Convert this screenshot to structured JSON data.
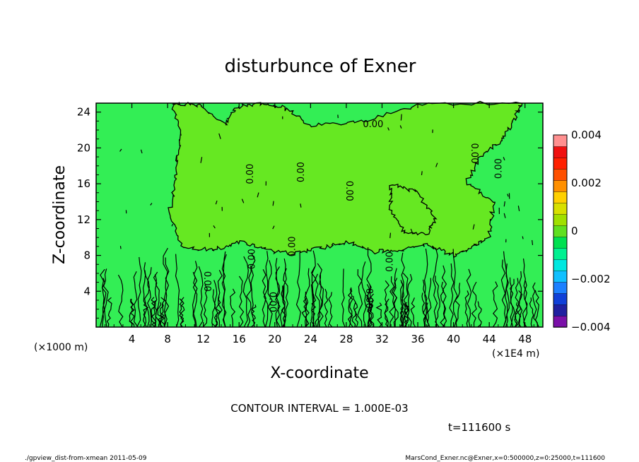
{
  "chart_data": {
    "type": "contour",
    "title": "disturbunce of Exner",
    "xlabel": "X-coordinate",
    "ylabel": "Z-coordinate",
    "x_unit": "(×1E4 m)",
    "y_unit": "(×1000 m)",
    "xlim": [
      0,
      50
    ],
    "ylim": [
      0,
      25
    ],
    "x_ticks": [
      "4",
      "8",
      "12",
      "16",
      "20",
      "24",
      "28",
      "32",
      "36",
      "40",
      "44",
      "48"
    ],
    "y_ticks": [
      "4",
      "8",
      "12",
      "16",
      "20",
      "24"
    ],
    "contour_interval": "CONTOUR INTERVAL = 1.000E-03",
    "contour_labels": [
      {
        "text": "0.00",
        "x": 31.0,
        "y": 22.6,
        "rotate": 0
      },
      {
        "text": "0.00",
        "x": 17.3,
        "y": 17.1,
        "rotate": -90
      },
      {
        "text": "0.00",
        "x": 23.0,
        "y": 17.3,
        "rotate": -90
      },
      {
        "text": "0.00",
        "x": 28.3,
        "y": 15.2,
        "rotate": 90
      },
      {
        "text": "0.00",
        "x": 42.3,
        "y": 19.4,
        "rotate": 90
      },
      {
        "text": "0.00",
        "x": 45.1,
        "y": 17.7,
        "rotate": -90
      },
      {
        "text": "0.00",
        "x": 17.5,
        "y": 7.6,
        "rotate": -90
      },
      {
        "text": "0.00",
        "x": 22.0,
        "y": 9.0,
        "rotate": -90
      },
      {
        "text": "0.00",
        "x": 32.9,
        "y": 7.3,
        "rotate": -90
      },
      {
        "text": "0.00",
        "x": 12.4,
        "y": 5.1,
        "rotate": 90
      },
      {
        "text": "0.00",
        "x": 19.7,
        "y": 2.8,
        "rotate": 90
      },
      {
        "text": "0.00",
        "x": 30.5,
        "y": 3.2,
        "rotate": 90
      }
    ],
    "colorbar": {
      "min": -0.004,
      "max": 0.004,
      "labels": [
        "0.004",
        "0.002",
        "0",
        "−0.002",
        "−0.004"
      ],
      "label_values": [
        0.004,
        0.002,
        0,
        -0.002,
        -0.004
      ],
      "colors": [
        "#7a10a8",
        "#2020a0",
        "#1040d8",
        "#1c80ff",
        "#10c0ff",
        "#00e8e0",
        "#00f090",
        "#00e050",
        "#60e020",
        "#a0e000",
        "#d8e000",
        "#ffd000",
        "#ff9000",
        "#ff5000",
        "#ff2000",
        "#f01010",
        "#ff9090"
      ]
    },
    "field_colors": {
      "background": "#33ee55",
      "positive": "#66e822"
    }
  },
  "annotations": {
    "time": "t=111600 s"
  },
  "footer": {
    "left": "./gpview_dist-from-xmean   2011-05-09",
    "right": "MarsCond_Exner.nc@Exner,x=0:500000,z=0:25000,t=111600"
  }
}
